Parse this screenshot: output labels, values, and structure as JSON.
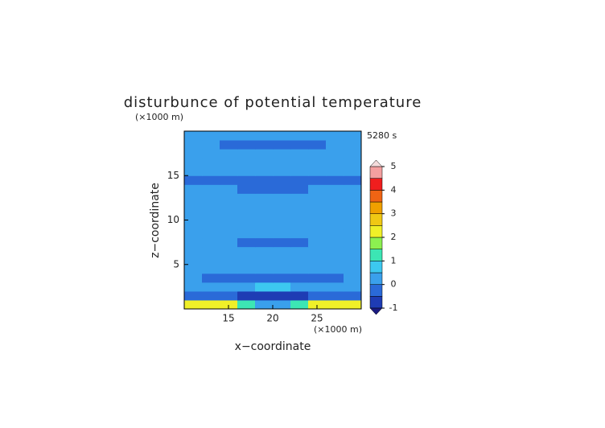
{
  "chart_data": {
    "type": "contour",
    "title": "disturbunce of potential temperature",
    "x_label": "x−coordinate",
    "y_label": "z−coordinate",
    "x_unit": "(×1000 m)",
    "y_unit": "(×1000 m)",
    "annotation": "5280 s",
    "xlim": [
      10,
      30
    ],
    "xticks": [
      15,
      20,
      25
    ],
    "ylim": [
      0,
      20
    ],
    "yticks": [
      5,
      10,
      15
    ],
    "x": [
      11,
      13,
      15,
      17,
      19,
      21,
      23,
      25,
      27,
      29
    ],
    "y": [
      0.5,
      1.5,
      2.5,
      3.5,
      4.5,
      5.5,
      6.5,
      7.5,
      8.5,
      9.5,
      10.5,
      11.5,
      12.5,
      13.5,
      14.5,
      15.5,
      16.5,
      17.5,
      18.5,
      19.5
    ],
    "z": [
      [
        2.2,
        2.2,
        2.2,
        1.2,
        0.2,
        0.2,
        1.2,
        2.2,
        2.2,
        2.2
      ],
      [
        -0.3,
        -0.3,
        -0.3,
        -0.6,
        -0.7,
        -0.7,
        -0.6,
        -0.3,
        -0.3,
        -0.3
      ],
      [
        0.2,
        0.2,
        0.2,
        0.2,
        0.7,
        0.7,
        0.2,
        0.2,
        0.2,
        0.2
      ],
      [
        0.2,
        -0.3,
        -0.3,
        -0.3,
        -0.3,
        -0.3,
        -0.3,
        -0.3,
        -0.3,
        0.2
      ],
      [
        0.2,
        0.2,
        0.2,
        0.2,
        0.2,
        0.2,
        0.2,
        0.2,
        0.2,
        0.2
      ],
      [
        0.2,
        0.2,
        0.2,
        0.2,
        0.2,
        0.2,
        0.2,
        0.2,
        0.2,
        0.2
      ],
      [
        0.2,
        0.2,
        0.2,
        0.2,
        0.2,
        0.2,
        0.2,
        0.2,
        0.2,
        0.2
      ],
      [
        0.2,
        0.2,
        0.2,
        -0.3,
        -0.3,
        -0.3,
        -0.3,
        0.2,
        0.2,
        0.2
      ],
      [
        0.2,
        0.2,
        0.2,
        0.2,
        0.2,
        0.2,
        0.2,
        0.2,
        0.2,
        0.2
      ],
      [
        0.2,
        0.2,
        0.2,
        0.2,
        0.2,
        0.2,
        0.2,
        0.2,
        0.2,
        0.2
      ],
      [
        0.2,
        0.2,
        0.2,
        0.2,
        0.2,
        0.2,
        0.2,
        0.2,
        0.2,
        0.2
      ],
      [
        0.2,
        0.2,
        0.2,
        0.2,
        0.2,
        0.2,
        0.2,
        0.2,
        0.2,
        0.2
      ],
      [
        0.2,
        0.2,
        0.2,
        0.2,
        0.2,
        0.2,
        0.2,
        0.2,
        0.2,
        0.2
      ],
      [
        0.2,
        0.2,
        0.2,
        -0.3,
        -0.3,
        -0.3,
        -0.3,
        0.2,
        0.2,
        0.2
      ],
      [
        -0.3,
        -0.3,
        -0.3,
        -0.3,
        -0.3,
        -0.3,
        -0.3,
        -0.3,
        -0.3,
        -0.3
      ],
      [
        0.2,
        0.2,
        0.2,
        0.2,
        0.2,
        0.2,
        0.2,
        0.2,
        0.2,
        0.2
      ],
      [
        0.2,
        0.2,
        0.2,
        0.2,
        0.2,
        0.2,
        0.2,
        0.2,
        0.2,
        0.2
      ],
      [
        0.2,
        0.2,
        0.2,
        0.2,
        0.2,
        0.2,
        0.2,
        0.2,
        0.2,
        0.2
      ],
      [
        0.2,
        0.2,
        -0.3,
        -0.3,
        -0.3,
        -0.3,
        -0.3,
        -0.3,
        0.2,
        0.2
      ],
      [
        0.2,
        0.2,
        0.2,
        0.2,
        0.2,
        0.2,
        0.2,
        0.2,
        0.2,
        0.2
      ]
    ],
    "levels": [
      -1,
      -0.5,
      0,
      0.5,
      1,
      1.5,
      2,
      2.5,
      3,
      3.5,
      4,
      4.5,
      5
    ],
    "colors": [
      "#1e3cb4",
      "#2a6ad8",
      "#3aa0ec",
      "#3cc8f0",
      "#3ce6b4",
      "#8cf050",
      "#f0f028",
      "#f0c814",
      "#f0a000",
      "#f06414",
      "#f01e1e",
      "#f4a0a0"
    ],
    "extend_colors": [
      "#1a1a80",
      "#f4dcdc"
    ],
    "colorbar_ticks": [
      -1,
      0,
      1,
      2,
      3,
      4,
      5
    ]
  }
}
